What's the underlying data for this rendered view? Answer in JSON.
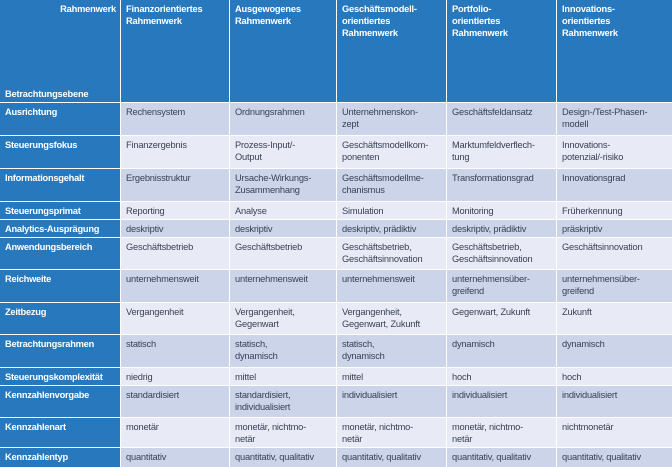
{
  "colors": {
    "header_blue": "#2878be",
    "row_stripe_dark": "#cbd4e9",
    "row_stripe_light": "#e8ebf6",
    "gridline_white": "#ffffff",
    "text_dark": "#3a4055",
    "text_white": "#ffffff"
  },
  "table": {
    "corner": {
      "top_right": "Rahmenwerk",
      "bottom_left": "Betrachtungsebene"
    },
    "columns": [
      "Finanzorientiertes\nRahmenwerk",
      "Ausgewogenes\nRahmenwerk",
      "Geschäftsmodell-\norientiertes\nRahmenwerk",
      "Portfolio-\norientiertes\nRahmenwerk",
      "Innovations-\norientiertes\nRahmenwerk"
    ],
    "rows": [
      {
        "label": "Ausrichtung",
        "cells": [
          "Rechensystem",
          "Ordnungsrahmen",
          "Unternehmenskon-\nzept",
          "Geschäftsfeldansatz",
          "Design-/Test-Phasen-\nmodell"
        ]
      },
      {
        "label": "Steuerungsfokus",
        "cells": [
          "Finanzergebnis",
          "Prozess-Input/-\nOutput",
          "Geschäftsmodellkom-\nponenten",
          "Marktumfeldverflech-\ntung",
          "Innovations-\npotenzial/-risiko"
        ]
      },
      {
        "label": "Informationsgehalt",
        "cells": [
          "Ergebnisstruktur",
          "Ursache-Wirkungs-\nZusammenhang",
          "Geschäftsmodellme-\nchanismus",
          "Transformationsgrad",
          "Innovationsgrad"
        ]
      },
      {
        "label": "Steuerungsprimat",
        "cells": [
          "Reporting",
          "Analyse",
          "Simulation",
          "Monitoring",
          "Früherkennung"
        ]
      },
      {
        "label": "Analytics-Ausprägung",
        "cells": [
          "deskriptiv",
          "deskriptiv",
          "deskriptiv, prädiktiv",
          "deskriptiv, prädiktiv",
          "präskriptiv"
        ]
      },
      {
        "label": "Anwendungsbereich",
        "cells": [
          "Geschäftsbetrieb",
          "Geschäftsbetrieb",
          "Geschäftsbetrieb,\nGeschäftsinnovation",
          "Geschäftsbetrieb,\nGeschäftsinnovation",
          "Geschäftsinnovation"
        ]
      },
      {
        "label": "Reichweite",
        "cells": [
          "unternehmensweit",
          "unternehmensweit",
          "unternehmensweit",
          "unternehmensüber-\ngreifend",
          "unternehmensüber-\ngreifend"
        ]
      },
      {
        "label": "Zeitbezug",
        "cells": [
          "Vergangenheit",
          "Vergangenheit,\nGegenwart",
          "Vergangenheit,\nGegenwart, Zukunft",
          "Gegenwart, Zukunft",
          "Zukunft"
        ]
      },
      {
        "label": "Betrachtungsrahmen",
        "cells": [
          "statisch",
          "statisch,\ndynamisch",
          "statisch,\ndynamisch",
          "dynamisch",
          "dynamisch"
        ]
      },
      {
        "label": "Steuerungskomplexität",
        "cells": [
          "niedrig",
          "mittel",
          "mittel",
          "hoch",
          "hoch"
        ]
      },
      {
        "label": "Kennzahlenvorgabe",
        "cells": [
          "standardisiert",
          "standardisiert,\nindividualisiert",
          "individualisiert",
          "individualisiert",
          "individualisiert"
        ]
      },
      {
        "label": "Kennzahlenart",
        "cells": [
          "monetär",
          "monetär, nichtmo-\nnetär",
          "monetär, nichtmo-\nnetär",
          "monetär, nichtmo-\nnetär",
          "nichtmonetär"
        ]
      },
      {
        "label": "Kennzahlentyp",
        "cells": [
          "quantitativ",
          "quantitativ, qualitativ",
          "quantitativ, qualitativ",
          "quantitativ, qualitativ",
          "quantitativ, qualitativ"
        ]
      }
    ]
  },
  "chart_data": {
    "type": "table",
    "title": "",
    "row_header": "Betrachtungsebene",
    "column_header": "Rahmenwerk"
  }
}
